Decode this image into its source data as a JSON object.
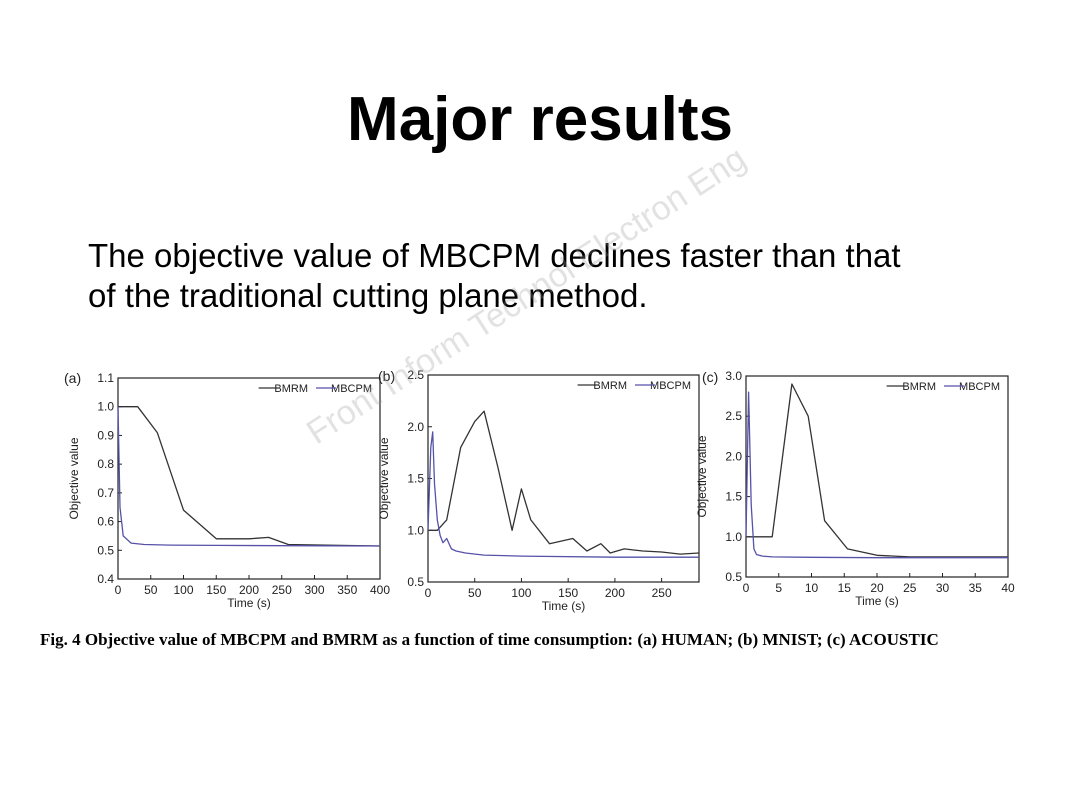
{
  "slide": {
    "title": "Major results",
    "body_line1": "The objective value of MBCPM declines faster than that",
    "body_line2": "of the traditional cutting plane method.",
    "watermark": "Front Inform Technol Electron Eng"
  },
  "caption": {
    "label": "Fig. 4",
    "text": "Objective value of MBCPM and BMRM as a function of time consumption: (a) HUMAN; (b) MNIST; (c) ACOUSTIC"
  },
  "colors": {
    "bmrm": "#333333",
    "mbcpm": "#5552a8"
  },
  "chart_data": [
    {
      "type": "line",
      "panel_label": "(a)",
      "xlabel": "Time (s)",
      "ylabel": "Objective value",
      "xlim": [
        0,
        400
      ],
      "ylim": [
        0.4,
        1.1
      ],
      "xticks": [
        0,
        50,
        100,
        150,
        200,
        250,
        300,
        350,
        400
      ],
      "yticks": [
        0.4,
        0.5,
        0.6,
        0.7,
        0.8,
        0.9,
        1.0,
        1.1
      ],
      "ytick_labels": [
        "0.4",
        "0.5",
        "0.6",
        "0.7",
        "0.8",
        "0.9",
        "1.0",
        "1.1"
      ],
      "legend": "top-right",
      "series": [
        {
          "name": "BMRM",
          "x": [
            0,
            30,
            60,
            100,
            150,
            200,
            230,
            260,
            400
          ],
          "y": [
            1.0,
            1.0,
            0.91,
            0.64,
            0.54,
            0.54,
            0.545,
            0.52,
            0.515
          ]
        },
        {
          "name": "MBCPM",
          "x": [
            0,
            3,
            8,
            20,
            40,
            80,
            150,
            250,
            400
          ],
          "y": [
            1.0,
            0.65,
            0.55,
            0.525,
            0.52,
            0.518,
            0.517,
            0.516,
            0.515
          ]
        }
      ]
    },
    {
      "type": "line",
      "panel_label": "(b)",
      "xlabel": "Time (s)",
      "ylabel": "Objective value",
      "xlim": [
        0,
        290
      ],
      "ylim": [
        0.5,
        2.5
      ],
      "xticks": [
        0,
        50,
        100,
        150,
        200,
        250
      ],
      "yticks": [
        0.5,
        1.0,
        1.5,
        2.0,
        2.5
      ],
      "ytick_labels": [
        "0.5",
        "1.0",
        "1.5",
        "2.0",
        "2.5"
      ],
      "legend": "top-right",
      "series": [
        {
          "name": "BMRM",
          "x": [
            0,
            10,
            20,
            35,
            50,
            60,
            75,
            90,
            100,
            110,
            130,
            155,
            170,
            185,
            195,
            210,
            230,
            250,
            270,
            290
          ],
          "y": [
            1.0,
            1.0,
            1.1,
            1.8,
            2.05,
            2.15,
            1.6,
            1.0,
            1.4,
            1.1,
            0.87,
            0.92,
            0.8,
            0.87,
            0.78,
            0.82,
            0.8,
            0.79,
            0.77,
            0.78
          ]
        },
        {
          "name": "MBCPM",
          "x": [
            0,
            3,
            5,
            7,
            10,
            13,
            16,
            20,
            25,
            30,
            40,
            60,
            100,
            200,
            290
          ],
          "y": [
            1.0,
            1.8,
            1.95,
            1.45,
            1.1,
            0.95,
            0.88,
            0.92,
            0.82,
            0.8,
            0.78,
            0.76,
            0.75,
            0.74,
            0.74
          ]
        }
      ]
    },
    {
      "type": "line",
      "panel_label": "(c)",
      "xlabel": "Time (s)",
      "ylabel": "Objective value",
      "xlim": [
        0,
        40
      ],
      "ylim": [
        0.5,
        3.0
      ],
      "xticks": [
        0,
        5,
        10,
        15,
        20,
        25,
        30,
        35,
        40
      ],
      "yticks": [
        0.5,
        1.0,
        1.5,
        2.0,
        2.5,
        3.0
      ],
      "ytick_labels": [
        "0.5",
        "1.0",
        "1.5",
        "2.0",
        "2.5",
        "3.0"
      ],
      "legend": "top-right",
      "series": [
        {
          "name": "BMRM",
          "x": [
            0,
            2,
            4,
            7,
            9.5,
            12,
            15.5,
            20,
            25,
            30,
            40
          ],
          "y": [
            1.0,
            1.0,
            1.0,
            2.9,
            2.5,
            1.2,
            0.85,
            0.77,
            0.75,
            0.75,
            0.75
          ]
        },
        {
          "name": "MBCPM",
          "x": [
            0,
            0.4,
            0.8,
            1.2,
            1.6,
            2.5,
            4,
            10,
            20,
            40
          ],
          "y": [
            1.0,
            2.8,
            1.4,
            0.85,
            0.78,
            0.76,
            0.75,
            0.745,
            0.74,
            0.74
          ]
        }
      ]
    }
  ]
}
